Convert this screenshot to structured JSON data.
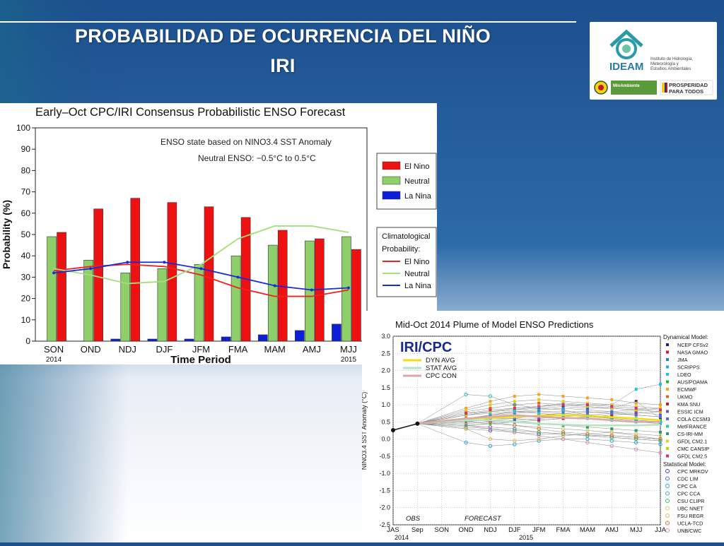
{
  "slide": {
    "title_line1": "PROBABILIDAD DE OCURRENCIA DEL NIÑO",
    "title_line2": "IRI"
  },
  "logo": {
    "org_name": "IDEAM",
    "org_subtitle_1": "Instituto de Hidrología,",
    "org_subtitle_2": "Meteorología y",
    "org_subtitle_3": "Estudios Ambientales",
    "ministry": "MinAmbiente",
    "slogan_1": "PROSPERIDAD",
    "slogan_2": "PARA TODOS"
  },
  "chart_data": [
    {
      "type": "bar",
      "title": "Early–Oct CPC/IRI Consensus Probabilistic ENSO Forecast",
      "xlabel": "Time Period",
      "ylabel": "Probability (%)",
      "ylim": [
        0,
        100
      ],
      "yticks": [
        0,
        10,
        20,
        30,
        40,
        50,
        60,
        70,
        80,
        90,
        100
      ],
      "categories": [
        "SON",
        "OND",
        "NDJ",
        "DJF",
        "JFM",
        "FMA",
        "MAM",
        "AMJ",
        "MJJ"
      ],
      "year_labels": {
        "SON": "2014",
        "MJJ": "2015"
      },
      "annotation_1": "ENSO state based on NINO3.4 SST Anomaly",
      "annotation_2": "Neutral ENSO: −0.5°C to 0.5°C",
      "series": [
        {
          "name": "La Nina",
          "color": "#0a1fd6",
          "values": [
            0,
            0,
            1,
            1,
            1,
            2,
            3,
            5,
            8
          ]
        },
        {
          "name": "Neutral",
          "color": "#8fcf6a",
          "values": [
            49,
            38,
            32,
            34,
            36,
            40,
            45,
            47,
            49
          ]
        },
        {
          "name": "El Nino",
          "color": "#ee1111",
          "values": [
            51,
            62,
            67,
            65,
            63,
            58,
            52,
            48,
            43
          ]
        }
      ],
      "climatology_title_1": "Climatological",
      "climatology_title_2": "Probability:",
      "climatology": [
        {
          "name": "El Nino",
          "color": "#ee2222",
          "values": [
            33,
            35,
            36,
            35,
            31,
            25,
            21,
            21,
            24
          ]
        },
        {
          "name": "Neutral",
          "color": "#a6dd7c",
          "values": [
            34,
            31,
            27,
            28,
            36,
            48,
            54,
            54,
            51
          ]
        },
        {
          "name": "La Nina",
          "color": "#1a2bd6",
          "values": [
            32,
            34,
            37,
            37,
            34,
            30,
            26,
            24,
            25
          ]
        }
      ],
      "grid": false,
      "legend_position": "right"
    },
    {
      "type": "line",
      "title": "Mid-Oct 2014 Plume of Model ENSO Predictions",
      "ylabel": "NINO3.4 SST Anomaly (°C)",
      "ylim": [
        -2.5,
        3.0
      ],
      "yticks": [
        -2.5,
        -2.0,
        -1.5,
        -1.0,
        -0.5,
        0.0,
        0.5,
        1.0,
        1.5,
        2.0,
        2.5,
        3.0
      ],
      "categories": [
        "JAS",
        "Sep",
        "SON",
        "OND",
        "NDJ",
        "DJF",
        "JFM",
        "FMA",
        "MAM",
        "AMJ",
        "MJJ",
        "JJA"
      ],
      "year_2014": "2014",
      "year_2015": "2015",
      "obs_label": "OBS",
      "forecast_label": "FORECAST",
      "watermark": "IRI/CPC",
      "grid": true,
      "observed": [
        0.26,
        0.45
      ],
      "averages": [
        {
          "name": "DYN AVG",
          "color": "#f2dc1a",
          "values": [
            0.6,
            0.62,
            0.65,
            0.68,
            0.7,
            0.68,
            0.64,
            0.6,
            0.55
          ]
        },
        {
          "name": "STAT AVG",
          "color": "#b7e3c5",
          "values": [
            0.55,
            0.55,
            0.5,
            0.45,
            0.42,
            0.4,
            0.4,
            0.4,
            0.42
          ]
        },
        {
          "name": "CPC CON",
          "color": "#d9a8a8",
          "values": [
            0.6,
            0.65,
            0.7,
            0.65,
            0.62,
            0.6,
            0.55,
            0.5,
            0.5
          ]
        }
      ],
      "dynamical_header": "Dynamical Model:",
      "statistical_header": "Statistical Model:",
      "models": [
        {
          "name": "NCEP CFSv2",
          "color": "#2a1a8a",
          "kind": "dyn",
          "values": [
            0.7,
            0.8,
            0.85,
            0.9,
            0.95,
            0.9,
            0.9,
            1.1,
            0.6
          ]
        },
        {
          "name": "NASA GMAO",
          "color": "#c81a4a",
          "kind": "dyn",
          "values": [
            0.5,
            0.6,
            0.6,
            0.7,
            0.75,
            0.78,
            0.8,
            0.85,
            0.9
          ]
        },
        {
          "name": "JMA",
          "color": "#2a7ad6",
          "kind": "dyn",
          "values": [
            0.6,
            0.7,
            0.8,
            0.85,
            0.9,
            0.85,
            0.8,
            0.7,
            0.65
          ]
        },
        {
          "name": "SCRIPPS",
          "color": "#2aa6e0",
          "kind": "dyn",
          "values": [
            0.5,
            0.55,
            0.6,
            0.55,
            0.6,
            0.6,
            0.55,
            0.5,
            0.45
          ]
        },
        {
          "name": "LDEO",
          "color": "#19c6d6",
          "kind": "dyn",
          "values": [
            0.75,
            0.8,
            0.85,
            0.95,
            1.05,
            1.0,
            1.0,
            1.45,
            1.6
          ]
        },
        {
          "name": "AUS/POAMA",
          "color": "#2ab82a",
          "kind": "dyn",
          "values": [
            0.55,
            0.7,
            0.8,
            0.8,
            0.75,
            0.7,
            0.65,
            0.6,
            0.55
          ]
        },
        {
          "name": "ECMWF",
          "color": "#f2a51a",
          "kind": "dyn",
          "values": [
            0.9,
            1.1,
            1.25,
            1.3,
            1.25,
            1.2,
            1.15,
            1.05,
            1.0
          ]
        },
        {
          "name": "UKMO",
          "color": "#e0671a",
          "kind": "dyn",
          "values": [
            0.8,
            0.9,
            1.0,
            1.05,
            1.0,
            0.95,
            0.9,
            0.85,
            0.8
          ]
        },
        {
          "name": "KMA SNU",
          "color": "#c81a1a",
          "kind": "dyn",
          "values": [
            0.4,
            0.45,
            0.5,
            0.55,
            0.6,
            0.65,
            0.7,
            0.75,
            0.8
          ]
        },
        {
          "name": "ESSIC ICM",
          "color": "#7a4ac8",
          "kind": "dyn",
          "values": [
            0.45,
            0.5,
            0.55,
            0.6,
            0.65,
            0.7,
            0.75,
            0.8,
            0.7
          ]
        },
        {
          "name": "COLA CCSM3",
          "color": "#5a6ad6",
          "kind": "dyn",
          "values": [
            0.6,
            0.7,
            0.75,
            0.8,
            0.8,
            0.8,
            0.75,
            0.7,
            0.65
          ]
        },
        {
          "name": "MetFRANCE",
          "color": "#38c2b8",
          "kind": "dyn",
          "values": [
            0.7,
            0.75,
            0.8,
            0.75,
            0.7,
            0.65,
            0.6,
            0.55,
            0.5
          ]
        },
        {
          "name": "CS-IRI-MM",
          "color": "#2a9e6a",
          "kind": "dyn",
          "values": [
            0.4,
            0.45,
            0.5,
            0.45,
            0.4,
            0.35,
            0.3,
            0.25,
            0.2
          ]
        },
        {
          "name": "GFDL CM2.1",
          "color": "#e8c81a",
          "kind": "dyn",
          "values": [
            0.85,
            1.0,
            1.1,
            1.15,
            1.1,
            1.05,
            1.0,
            0.95,
            0.9
          ]
        },
        {
          "name": "CMC CANSIP",
          "color": "#b8d61a",
          "kind": "dyn",
          "values": [
            0.7,
            0.8,
            0.9,
            0.95,
            1.0,
            0.95,
            0.9,
            0.85,
            0.8
          ]
        },
        {
          "name": "GFDL CM2.5",
          "color": "#e02a6a",
          "kind": "dyn",
          "values": [
            0.75,
            0.85,
            0.9,
            0.95,
            1.0,
            1.0,
            0.95,
            0.9,
            0.85
          ]
        },
        {
          "name": "CPC MRKOV",
          "color": "#5a3aa8",
          "kind": "stat",
          "values": [
            0.3,
            0.25,
            0.2,
            0.15,
            0.15,
            0.1,
            0.1,
            0.05,
            0.0
          ]
        },
        {
          "name": "CDC LIM",
          "color": "#4a7ac8",
          "kind": "stat",
          "values": [
            0.4,
            0.35,
            0.3,
            0.2,
            0.15,
            0.1,
            0.05,
            0.0,
            -0.05
          ]
        },
        {
          "name": "CPC CA",
          "color": "#1aa6e0",
          "kind": "stat",
          "values": [
            -0.1,
            -0.2,
            -0.15,
            -0.05,
            0.0,
            0.0,
            -0.05,
            -0.1,
            -0.15
          ]
        },
        {
          "name": "CPC CCA",
          "color": "#2ab8c8",
          "kind": "stat",
          "values": [
            1.3,
            1.25,
            1.0,
            0.9,
            0.85,
            0.7,
            0.6,
            0.55,
            0.5
          ]
        },
        {
          "name": "CSU CLIPR",
          "color": "#2ac86a",
          "kind": "stat",
          "values": [
            0.35,
            0.3,
            0.25,
            0.2,
            0.15,
            0.1,
            0.05,
            0.0,
            -0.05
          ]
        },
        {
          "name": "UBC NNET",
          "color": "#c8d65a",
          "kind": "stat",
          "values": [
            0.5,
            0.45,
            0.4,
            0.35,
            0.3,
            0.25,
            0.2,
            0.15,
            0.1
          ]
        },
        {
          "name": "FSU REGR",
          "color": "#e8b83a",
          "kind": "stat",
          "values": [
            0.3,
            0.0,
            -0.05,
            0.0,
            0.1,
            0.15,
            0.2,
            0.1,
            0.0
          ]
        },
        {
          "name": "UCLA-TCD",
          "color": "#e06a3a",
          "kind": "stat",
          "values": [
            0.6,
            0.5,
            0.4,
            0.3,
            0.2,
            0.15,
            0.1,
            0.05,
            0.0
          ]
        },
        {
          "name": "UNB/CWC",
          "color": "#d88aa8",
          "kind": "stat",
          "values": [
            0.4,
            0.3,
            0.2,
            0.1,
            0.0,
            -0.1,
            -0.2,
            -0.3,
            -0.4
          ]
        }
      ],
      "legend_position": "right"
    }
  ],
  "colors": {
    "background_top": "#1d4f8c",
    "background_bottom": "#ffffff",
    "accent_green": "#6aa84f"
  }
}
